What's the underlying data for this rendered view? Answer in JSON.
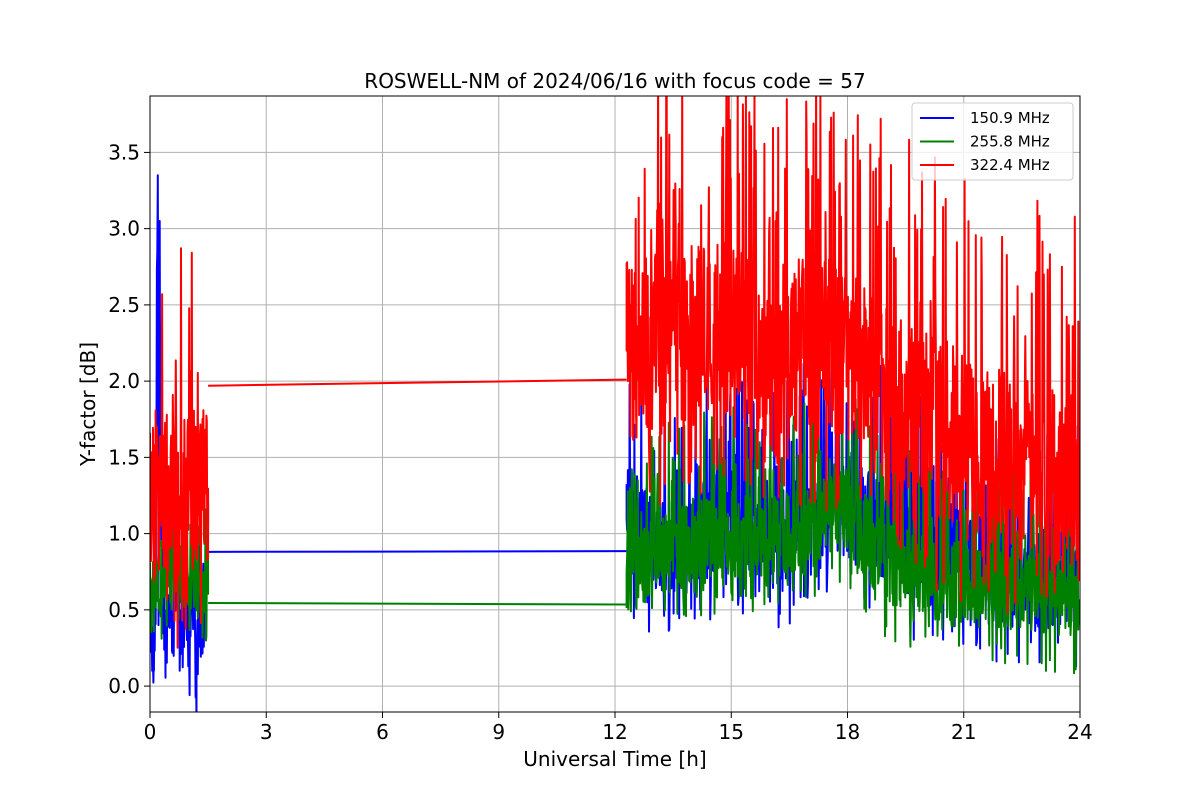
{
  "chart_data": {
    "type": "line",
    "title": "ROSWELL-NM of 2024/06/16 with focus code = 57",
    "xlabel": "Universal Time [h]",
    "ylabel": "Y-factor [dB]",
    "xlim": [
      0,
      24
    ],
    "ylim": [
      -0.17,
      3.87
    ],
    "xticks": [
      0,
      3,
      6,
      9,
      12,
      15,
      18,
      21,
      24
    ],
    "xtick_labels": [
      "0",
      "3",
      "6",
      "9",
      "12",
      "15",
      "18",
      "21",
      "24"
    ],
    "yticks": [
      0.0,
      0.5,
      1.0,
      1.5,
      2.0,
      2.5,
      3.0,
      3.5
    ],
    "ytick_labels": [
      "0.0",
      "0.5",
      "1.0",
      "1.5",
      "2.0",
      "2.5",
      "3.0",
      "3.5"
    ],
    "grid": true,
    "legend": "top-right",
    "series": [
      {
        "name": "150.9 MHz",
        "color": "#0000ff",
        "segments": [
          {
            "t_start": 0.0,
            "t_end": 1.5,
            "x": [
              0.0,
              0.05,
              0.1,
              0.15,
              0.2,
              0.22,
              0.25,
              0.3,
              0.4,
              0.5,
              0.6,
              0.7,
              0.8,
              0.9,
              1.0,
              1.1,
              1.2,
              1.3,
              1.4,
              1.5
            ],
            "y": [
              0.5,
              0.25,
              0.1,
              0.6,
              3.35,
              0.4,
              3.05,
              0.5,
              0.3,
              0.6,
              0.35,
              0.8,
              0.25,
              0.5,
              0.3,
              0.7,
              0.2,
              0.6,
              0.45,
              1.05
            ],
            "noise": 0.25
          },
          {
            "t_start": 1.5,
            "t_end": 12.3,
            "x": [
              1.5,
              12.3
            ],
            "y": [
              0.88,
              0.885
            ],
            "noise": 0
          },
          {
            "t_start": 12.3,
            "t_end": 24.0,
            "x": [
              12.3,
              13.0,
              14.0,
              15.0,
              16.0,
              17.0,
              18.0,
              19.0,
              20.0,
              21.0,
              22.0,
              23.0,
              24.0
            ],
            "y": [
              1.1,
              0.95,
              1.0,
              1.1,
              0.9,
              1.1,
              1.2,
              1.05,
              0.85,
              0.9,
              0.75,
              0.7,
              0.75
            ],
            "noise": 0.35
          }
        ]
      },
      {
        "name": "255.8 MHz",
        "color": "#008000",
        "segments": [
          {
            "t_start": 0.0,
            "t_end": 1.5,
            "x": [
              0.0,
              0.3,
              0.6,
              0.9,
              1.2,
              1.5
            ],
            "y": [
              0.7,
              0.65,
              0.7,
              0.75,
              0.65,
              0.6
            ],
            "noise": 0.2
          },
          {
            "t_start": 1.5,
            "t_end": 12.3,
            "x": [
              1.5,
              12.3
            ],
            "y": [
              0.545,
              0.535
            ],
            "noise": 0
          },
          {
            "t_start": 12.3,
            "t_end": 24.0,
            "x": [
              12.3,
              13.0,
              14.0,
              15.0,
              16.0,
              17.0,
              18.0,
              19.0,
              20.0,
              21.0,
              22.0,
              23.0,
              24.0
            ],
            "y": [
              0.75,
              0.85,
              0.95,
              1.0,
              0.95,
              1.05,
              1.15,
              0.8,
              0.7,
              0.7,
              0.65,
              0.6,
              0.55
            ],
            "noise": 0.28
          }
        ]
      },
      {
        "name": "322.4 MHz",
        "color": "#ff0000",
        "segments": [
          {
            "t_start": 0.0,
            "t_end": 1.5,
            "x": [
              0.0,
              0.3,
              0.6,
              0.9,
              1.2,
              1.5
            ],
            "y": [
              1.25,
              1.3,
              1.2,
              1.25,
              1.35,
              1.3
            ],
            "noise": 0.55
          },
          {
            "t_start": 1.5,
            "t_end": 12.3,
            "x": [
              1.5,
              12.3
            ],
            "y": [
              1.97,
              2.01
            ],
            "noise": 0
          },
          {
            "t_start": 12.3,
            "t_end": 24.0,
            "x": [
              12.3,
              13.0,
              14.0,
              15.0,
              16.0,
              17.0,
              18.0,
              19.0,
              20.0,
              21.0,
              22.0,
              23.0,
              24.0
            ],
            "y": [
              2.2,
              2.25,
              2.3,
              2.35,
              2.15,
              2.25,
              2.15,
              1.9,
              1.75,
              1.6,
              1.5,
              1.4,
              1.35
            ],
            "noise": 0.6
          }
        ]
      }
    ]
  }
}
